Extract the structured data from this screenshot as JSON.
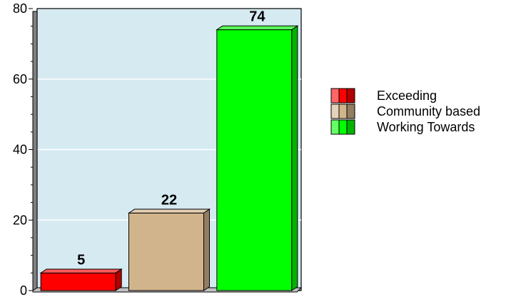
{
  "chart_data": {
    "type": "bar",
    "categories": [
      "Exceeding",
      "Community based",
      "Working Towards"
    ],
    "values": [
      5,
      22,
      74
    ],
    "ylim": [
      0,
      80
    ],
    "yticks": [
      0,
      20,
      40,
      60,
      80
    ],
    "title": "",
    "xlabel": "",
    "ylabel": "",
    "grid": true,
    "legend_position": "right",
    "plot_background": "#d6eaf2",
    "colors": [
      "#ff0000",
      "#d2b48c",
      "#00ff00"
    ]
  }
}
